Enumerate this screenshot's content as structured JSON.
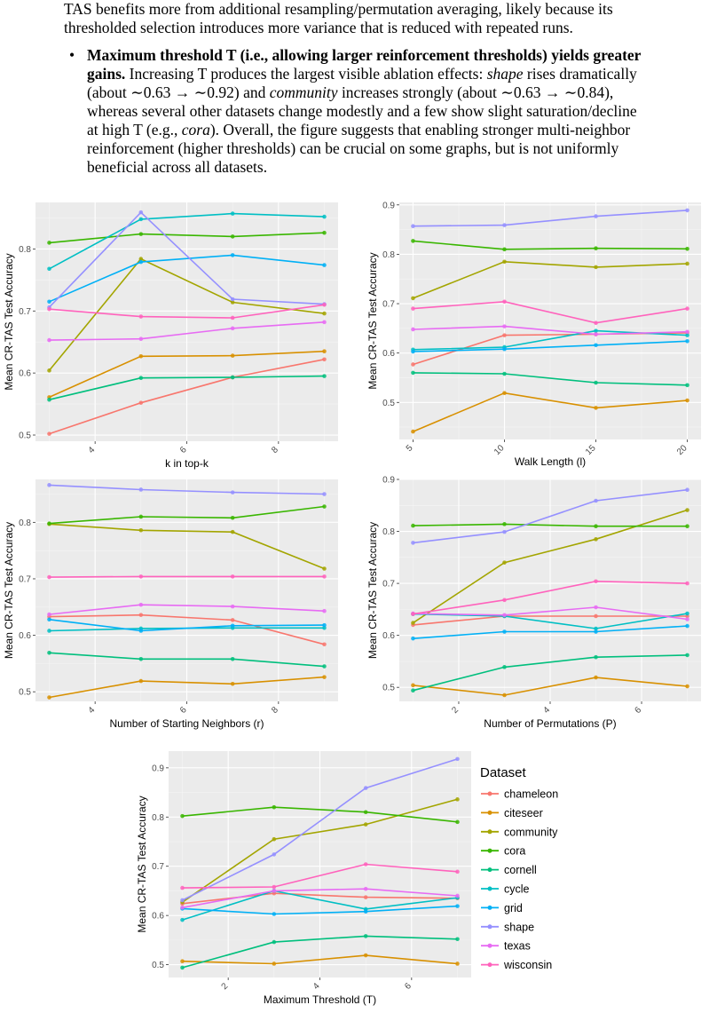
{
  "text": {
    "para1": "TAS benefits more from additional resampling/permutation averaging, likely because its thresholded selection introduces more variance that is reduced with repeated runs.",
    "bullet_bold": "Maximum threshold T (i.e., allowing larger reinforcement thresholds) yields greater gains.",
    "bullet_s1": " Increasing T produces the largest visible ablation effects: ",
    "bullet_shape": "shape",
    "bullet_s2": " rises dramatically (about ∼0.63 → ∼0.92) and ",
    "bullet_community": "community",
    "bullet_s3": " increases strongly (about ∼0.63 → ∼0.84), whereas several other datasets change modestly and a few show slight saturation/decline at high T (e.g., ",
    "bullet_cora": "cora",
    "bullet_s4": "). Overall, the figure suggests that enabling stronger multi-neighbor reinforcement (higher thresholds) can be crucial on some graphs, but is not uniformly beneficial across all datasets."
  },
  "legend": {
    "title": "Dataset",
    "items": [
      {
        "name": "chameleon",
        "color": "#F8766D"
      },
      {
        "name": "citeseer",
        "color": "#D89000"
      },
      {
        "name": "community",
        "color": "#A3A500"
      },
      {
        "name": "cora",
        "color": "#39B600"
      },
      {
        "name": "cornell",
        "color": "#00BF7D"
      },
      {
        "name": "cycle",
        "color": "#00BFC4"
      },
      {
        "name": "grid",
        "color": "#00B0F6"
      },
      {
        "name": "shape",
        "color": "#9590FF"
      },
      {
        "name": "texas",
        "color": "#E76BF3"
      },
      {
        "name": "wisconsin",
        "color": "#FF62BC"
      }
    ]
  },
  "chart_data": [
    {
      "type": "line",
      "xlabel": "k in top-k",
      "ylabel": "Mean CR-TAS Test Accuracy",
      "x": [
        3,
        5,
        7,
        9
      ],
      "xlim": [
        2.7,
        9.3
      ],
      "ylim": [
        0.49,
        0.875
      ],
      "xticks": [
        4,
        6,
        8
      ],
      "yticks": [
        0.5,
        0.6,
        0.7,
        0.8
      ],
      "series": [
        {
          "name": "chameleon",
          "values": [
            0.502,
            0.552,
            0.593,
            0.622
          ]
        },
        {
          "name": "citeseer",
          "values": [
            0.561,
            0.627,
            0.628,
            0.635
          ]
        },
        {
          "name": "community",
          "values": [
            0.604,
            0.784,
            0.714,
            0.696
          ]
        },
        {
          "name": "cora",
          "values": [
            0.81,
            0.824,
            0.82,
            0.826
          ]
        },
        {
          "name": "cornell",
          "values": [
            0.557,
            0.592,
            0.593,
            0.595
          ]
        },
        {
          "name": "cycle",
          "values": [
            0.768,
            0.848,
            0.857,
            0.852
          ]
        },
        {
          "name": "grid",
          "values": [
            0.715,
            0.779,
            0.79,
            0.774
          ]
        },
        {
          "name": "shape",
          "values": [
            0.706,
            0.859,
            0.719,
            0.711
          ]
        },
        {
          "name": "texas",
          "values": [
            0.653,
            0.655,
            0.672,
            0.682
          ]
        },
        {
          "name": "wisconsin",
          "values": [
            0.703,
            0.691,
            0.689,
            0.71
          ]
        }
      ]
    },
    {
      "type": "line",
      "xlabel": "Walk Length (l)",
      "ylabel": "Mean CR-TAS Test Accuracy",
      "x": [
        5,
        10,
        15,
        20
      ],
      "xlim": [
        4.25,
        20.75
      ],
      "ylim": [
        0.425,
        0.905
      ],
      "xticks": [
        5,
        10,
        15,
        20
      ],
      "yticks": [
        0.5,
        0.6,
        0.7,
        0.8,
        0.9
      ],
      "series": [
        {
          "name": "chameleon",
          "values": [
            0.577,
            0.636,
            0.638,
            0.641
          ]
        },
        {
          "name": "citeseer",
          "values": [
            0.441,
            0.519,
            0.489,
            0.504
          ]
        },
        {
          "name": "community",
          "values": [
            0.711,
            0.785,
            0.774,
            0.781
          ]
        },
        {
          "name": "cora",
          "values": [
            0.827,
            0.81,
            0.812,
            0.811
          ]
        },
        {
          "name": "cornell",
          "values": [
            0.56,
            0.558,
            0.54,
            0.535
          ]
        },
        {
          "name": "cycle",
          "values": [
            0.607,
            0.612,
            0.645,
            0.636
          ]
        },
        {
          "name": "grid",
          "values": [
            0.603,
            0.608,
            0.616,
            0.624
          ]
        },
        {
          "name": "shape",
          "values": [
            0.857,
            0.859,
            0.877,
            0.889
          ]
        },
        {
          "name": "texas",
          "values": [
            0.648,
            0.654,
            0.638,
            0.643
          ]
        },
        {
          "name": "wisconsin",
          "values": [
            0.69,
            0.704,
            0.661,
            0.69
          ]
        }
      ]
    },
    {
      "type": "line",
      "xlabel": "Number of Starting Neighbors (r)",
      "ylabel": "Mean CR-TAS Test Accuracy",
      "x": [
        3,
        5,
        7,
        9
      ],
      "xlim": [
        2.7,
        9.3
      ],
      "ylim": [
        0.483,
        0.876
      ],
      "xticks": [
        4,
        6,
        8
      ],
      "yticks": [
        0.5,
        0.6,
        0.7,
        0.8
      ],
      "series": [
        {
          "name": "chameleon",
          "values": [
            0.633,
            0.636,
            0.627,
            0.584
          ]
        },
        {
          "name": "citeseer",
          "values": [
            0.49,
            0.519,
            0.514,
            0.526
          ]
        },
        {
          "name": "community",
          "values": [
            0.797,
            0.786,
            0.783,
            0.718
          ]
        },
        {
          "name": "cora",
          "values": [
            0.798,
            0.81,
            0.808,
            0.828
          ]
        },
        {
          "name": "cornell",
          "values": [
            0.569,
            0.558,
            0.558,
            0.545
          ]
        },
        {
          "name": "cycle",
          "values": [
            0.608,
            0.612,
            0.613,
            0.613
          ]
        },
        {
          "name": "grid",
          "values": [
            0.628,
            0.608,
            0.617,
            0.618
          ]
        },
        {
          "name": "shape",
          "values": [
            0.866,
            0.858,
            0.853,
            0.85
          ]
        },
        {
          "name": "texas",
          "values": [
            0.637,
            0.654,
            0.651,
            0.643
          ]
        },
        {
          "name": "wisconsin",
          "values": [
            0.703,
            0.704,
            0.704,
            0.704
          ]
        }
      ]
    },
    {
      "type": "line",
      "xlabel": "Number of Permutations (P)",
      "ylabel": "Mean CR-TAS Test Accuracy",
      "x": [
        1,
        3,
        5,
        7
      ],
      "xlim": [
        0.7,
        7.3
      ],
      "ylim": [
        0.473,
        0.9
      ],
      "xticks": [
        2,
        4,
        6
      ],
      "yticks": [
        0.5,
        0.6,
        0.7,
        0.8,
        0.9
      ],
      "series": [
        {
          "name": "chameleon",
          "values": [
            0.62,
            0.637,
            0.637,
            0.637
          ]
        },
        {
          "name": "citeseer",
          "values": [
            0.504,
            0.485,
            0.519,
            0.502
          ]
        },
        {
          "name": "community",
          "values": [
            0.624,
            0.74,
            0.785,
            0.841
          ]
        },
        {
          "name": "cora",
          "values": [
            0.811,
            0.814,
            0.81,
            0.81
          ]
        },
        {
          "name": "cornell",
          "values": [
            0.494,
            0.539,
            0.558,
            0.562
          ]
        },
        {
          "name": "cycle",
          "values": [
            0.641,
            0.637,
            0.613,
            0.642
          ]
        },
        {
          "name": "grid",
          "values": [
            0.594,
            0.607,
            0.607,
            0.618
          ]
        },
        {
          "name": "shape",
          "values": [
            0.778,
            0.799,
            0.859,
            0.88
          ]
        },
        {
          "name": "texas",
          "values": [
            0.642,
            0.639,
            0.654,
            0.631
          ]
        },
        {
          "name": "wisconsin",
          "values": [
            0.641,
            0.668,
            0.704,
            0.7
          ]
        }
      ]
    },
    {
      "type": "line",
      "xlabel": "Maximum Threshold (T)",
      "ylabel": "Mean CR-TAS Test Accuracy",
      "x": [
        1,
        3,
        5,
        7
      ],
      "xlim": [
        0.7,
        7.3
      ],
      "ylim": [
        0.474,
        0.934
      ],
      "xticks": [
        2,
        4,
        6
      ],
      "yticks": [
        0.5,
        0.6,
        0.7,
        0.8,
        0.9
      ],
      "series": [
        {
          "name": "chameleon",
          "values": [
            0.624,
            0.645,
            0.637,
            0.635
          ]
        },
        {
          "name": "citeseer",
          "values": [
            0.507,
            0.502,
            0.519,
            0.502
          ]
        },
        {
          "name": "community",
          "values": [
            0.627,
            0.755,
            0.785,
            0.836
          ]
        },
        {
          "name": "cora",
          "values": [
            0.802,
            0.82,
            0.81,
            0.79
          ]
        },
        {
          "name": "cornell",
          "values": [
            0.494,
            0.546,
            0.558,
            0.552
          ]
        },
        {
          "name": "cycle",
          "values": [
            0.591,
            0.65,
            0.613,
            0.636
          ]
        },
        {
          "name": "grid",
          "values": [
            0.614,
            0.603,
            0.608,
            0.619
          ]
        },
        {
          "name": "shape",
          "values": [
            0.631,
            0.724,
            0.859,
            0.918
          ]
        },
        {
          "name": "texas",
          "values": [
            0.616,
            0.65,
            0.654,
            0.64
          ]
        },
        {
          "name": "wisconsin",
          "values": [
            0.656,
            0.658,
            0.704,
            0.689
          ]
        }
      ]
    }
  ]
}
